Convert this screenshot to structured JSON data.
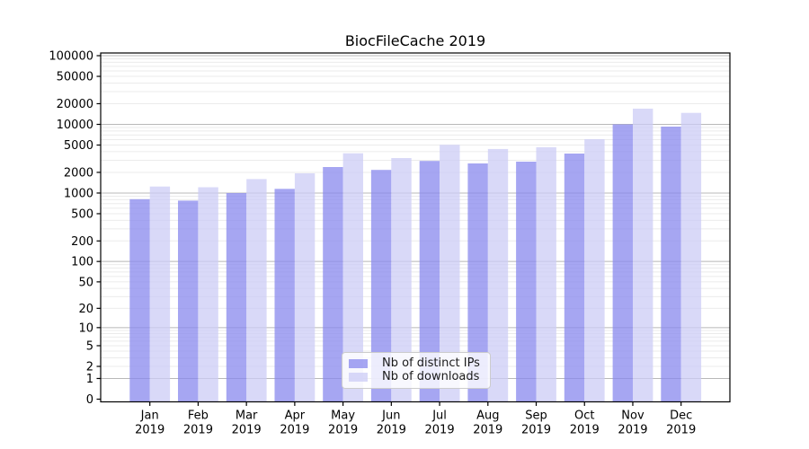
{
  "chart_data": {
    "type": "bar",
    "title": "BiocFileCache 2019",
    "categories": [
      "Jan",
      "Feb",
      "Mar",
      "Apr",
      "May",
      "Jun",
      "Jul",
      "Aug",
      "Sep",
      "Oct",
      "Nov",
      "Dec"
    ],
    "year": "2019",
    "series": [
      {
        "name": "Nb of distinct IPs",
        "color": "#8888ee",
        "values": [
          815,
          775,
          1000,
          1150,
          2390,
          2170,
          2940,
          2700,
          2870,
          3760,
          10000,
          9270
        ]
      },
      {
        "name": "Nb of downloads",
        "color": "#ccccf5",
        "values": [
          1245,
          1215,
          1600,
          1940,
          3790,
          3230,
          5030,
          4380,
          4640,
          6090,
          16950,
          14700
        ]
      }
    ],
    "xlabel": "",
    "ylabel": "",
    "yscale": "log1p",
    "ylim": [
      0,
      100000
    ],
    "y_ticks": [
      0,
      1,
      2,
      5,
      10,
      20,
      50,
      100,
      200,
      500,
      1000,
      2000,
      5000,
      10000,
      20000,
      50000,
      100000
    ],
    "grid": "on",
    "legend_position": "lower-center",
    "colors": {
      "bar_opacity": 0.75,
      "grid_major": "#b8b8b8",
      "grid_minor": "#ebebeb",
      "axis": "#000000",
      "tick_label": "#000000",
      "background": "#ffffff"
    }
  }
}
